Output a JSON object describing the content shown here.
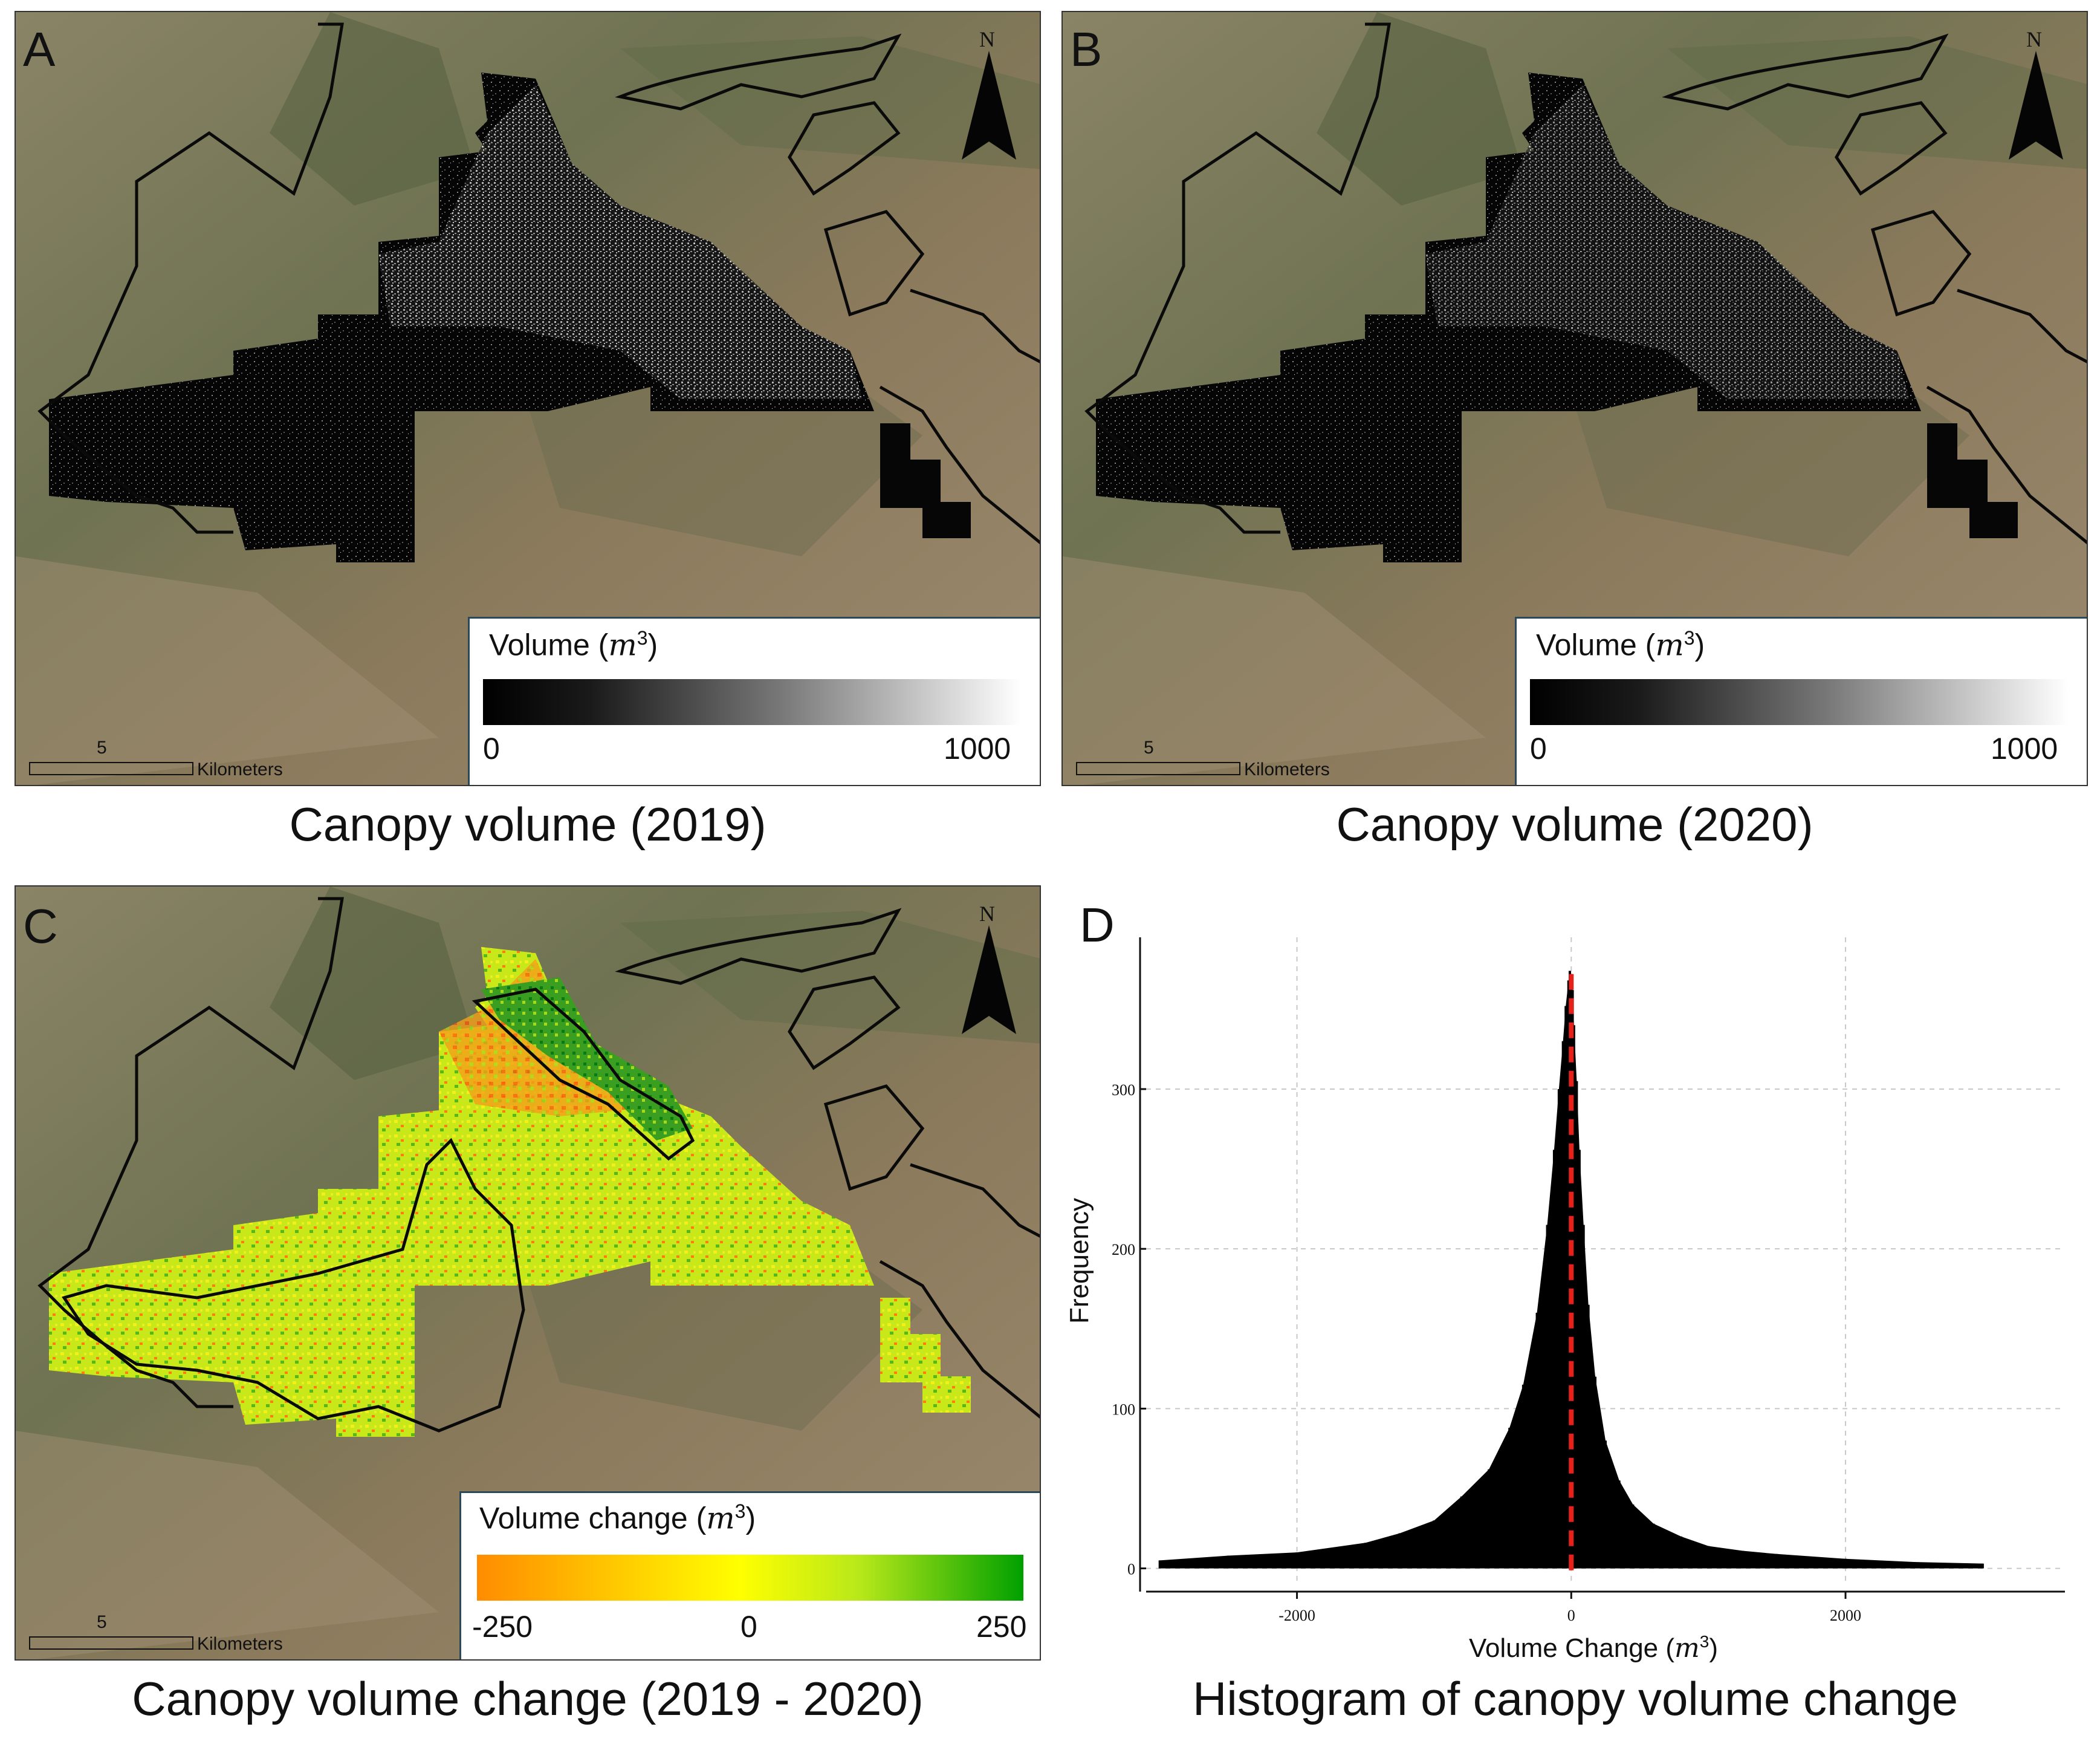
{
  "panels": {
    "a": {
      "letter": "A",
      "caption": "Canopy volume (2019)",
      "north": "N",
      "scale_value": "5",
      "scale_unit": "Kilometers",
      "legend_title": "Volume (",
      "legend_unit": "m",
      "legend_exp": "3",
      "legend_close": ")",
      "legend_min": "0",
      "legend_max": "1000"
    },
    "b": {
      "letter": "B",
      "caption": "Canopy volume (2020)",
      "north": "N",
      "scale_value": "5",
      "scale_unit": "Kilometers",
      "legend_title": "Volume (",
      "legend_unit": "m",
      "legend_exp": "3",
      "legend_close": ")",
      "legend_min": "0",
      "legend_max": "1000"
    },
    "c": {
      "letter": "C",
      "caption": "Canopy volume change (2019 - 2020)",
      "north": "N",
      "scale_value": "5",
      "scale_unit": "Kilometers",
      "legend_title": "Volume change (",
      "legend_unit": "m",
      "legend_exp": "3",
      "legend_close": ")",
      "legend_min": "-250",
      "legend_mid": "0",
      "legend_max": "250"
    },
    "d": {
      "letter": "D",
      "caption": "Histogram of canopy volume change"
    }
  },
  "colors": {
    "grayscale_low": "#000000",
    "grayscale_high": "#ffffff",
    "change_low": "#ff8c00",
    "change_mid": "#ffff00",
    "change_high": "#00a000",
    "histogram_bar": "#000000",
    "zero_line": "#e8201a"
  },
  "chart_data": {
    "type": "bar",
    "title": "",
    "xlabel": "Volume Change (",
    "xlabel_unit": "m",
    "xlabel_exp": "3",
    "xlabel_close": ")",
    "ylabel": "Frequency",
    "xlim": [
      -3100,
      3600
    ],
    "ylim": [
      -10,
      395
    ],
    "xticks": [
      -2000,
      0,
      2000
    ],
    "xtick_labels": [
      "-2000",
      "0",
      "2000"
    ],
    "yticks": [
      0,
      100,
      200,
      300
    ],
    "ytick_labels": [
      "0",
      "100",
      "200",
      "300"
    ],
    "x": [
      -3000,
      -2500,
      -2000,
      -1500,
      -1250,
      -1000,
      -800,
      -600,
      -450,
      -350,
      -250,
      -175,
      -125,
      -90,
      -60,
      -40,
      -20,
      -10,
      0,
      10,
      20,
      40,
      60,
      90,
      125,
      175,
      250,
      350,
      450,
      600,
      800,
      1000,
      1250,
      1500,
      2000,
      2500,
      3000
    ],
    "values": [
      5,
      8,
      10,
      16,
      22,
      30,
      45,
      62,
      88,
      115,
      160,
      215,
      262,
      300,
      330,
      352,
      368,
      374,
      372,
      362,
      340,
      305,
      262,
      215,
      165,
      120,
      80,
      55,
      40,
      28,
      20,
      14,
      11,
      9,
      6,
      4,
      3
    ],
    "reference_line": {
      "x": 0,
      "style": "dashed"
    }
  }
}
